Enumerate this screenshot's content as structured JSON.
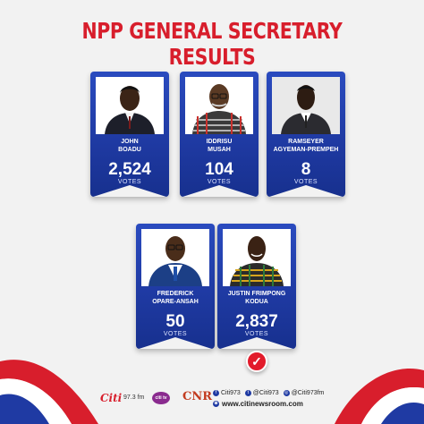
{
  "title": "NPP GENERAL SECRETARY RESULTS",
  "candidates": [
    {
      "name_line1": "JOHN",
      "name_line2": "BOADU",
      "votes": "2,524",
      "votes_label": "VOTES"
    },
    {
      "name_line1": "IDDRISU",
      "name_line2": "MUSAH",
      "votes": "104",
      "votes_label": "VOTES"
    },
    {
      "name_line1": "RAMSEYER",
      "name_line2": "AGYEMAN-PREMPEH",
      "votes": "8",
      "votes_label": "VOTES"
    },
    {
      "name_line1": "FREDERICK",
      "name_line2": "OPARE-ANSAH",
      "votes": "50",
      "votes_label": "VOTES"
    },
    {
      "name_line1": "JUSTIN FRIMPONG",
      "name_line2": "KODUA",
      "votes": "2,837",
      "votes_label": "VOTES"
    }
  ],
  "winner_badge_icon": "checkmark-icon",
  "footer": {
    "logos": {
      "citi": "Citi",
      "citi_freq": "97.3 fm",
      "tv": "citi tv",
      "cnr": "CNR"
    },
    "social": {
      "facebook": "Citi973",
      "twitter": "@Citi973",
      "instagram": "@Citi973fm"
    },
    "website": "www.citinewsroom.com"
  },
  "colors": {
    "title_red": "#d81e2c",
    "card_blue": "#1f3aa3",
    "badge_red": "#e21b2b"
  }
}
